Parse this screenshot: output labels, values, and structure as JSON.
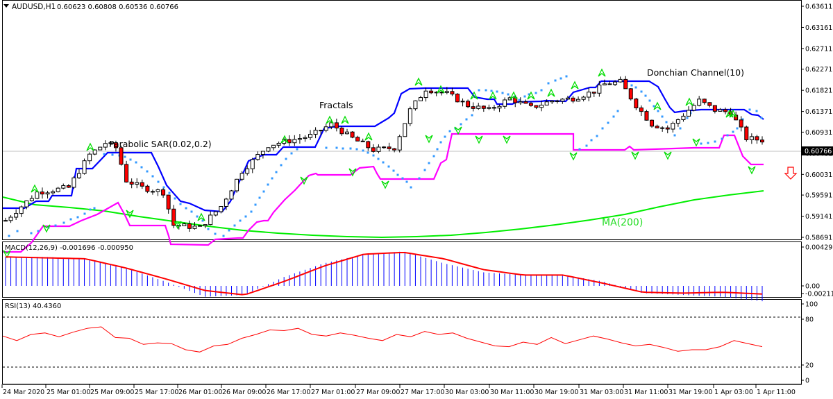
{
  "header": {
    "symbol_label": "AUDUSD,H1",
    "ohlc": "0.60623 0.60808 0.60536 0.60766",
    "dropdown_icon": "triangle-down-icon"
  },
  "annotations": {
    "parabolic_sar": "Parabolic SAR(0.02,0.2)",
    "fractals": "Fractals",
    "donchian": "Donchian Channel(10)",
    "ma": "MA(200)",
    "signal_icon": "arrow-down-outline-icon"
  },
  "macd_panel": {
    "label": "MACD(12,26,9) -0.001696 -0.000950"
  },
  "rsi_panel": {
    "label": "RSI(13) 40.4360"
  },
  "colors": {
    "bull_candle": "#ffffff",
    "bear_candle": "#ff0000",
    "donchian_upper": "#0000ff",
    "donchian_lower": "#ff00ff",
    "ma200": "#00ee00",
    "sar": "#3399ff",
    "fractals": "#00dd00",
    "macd_hist": "#0000ff",
    "macd_signal": "#ff0000",
    "rsi": "#ff0000",
    "arrow_signal": "#ff0000"
  },
  "chart_data": [
    {
      "type": "candlestick",
      "title": "AUDUSD,H1",
      "subtitle": "0.60623 0.60808 0.60536 0.60766",
      "ylim": [
        0.58691,
        0.63611
      ],
      "y_ticks": [
        "0.63611",
        "0.63161",
        "0.62711",
        "0.62271",
        "0.61821",
        "0.61371",
        "0.60931",
        "0.60481",
        "0.60031",
        "0.59591",
        "0.59141",
        "0.58691"
      ],
      "current_price": "0.60766",
      "x_ticks": [
        "24 Mar 2020",
        "25 Mar 01:00",
        "25 Mar 09:00",
        "25 Mar 17:00",
        "26 Mar 01:00",
        "26 Mar 09:00",
        "26 Mar 17:00",
        "27 Mar 01:00",
        "27 Mar 09:00",
        "27 Mar 17:00",
        "30 Mar 03:00",
        "30 Mar 11:00",
        "30 Mar 19:00",
        "31 Mar 03:00",
        "31 Mar 11:00",
        "31 Mar 19:00",
        "1 Apr 03:00",
        "1 Apr 11:00"
      ],
      "series": [
        {
          "name": "Donchian Channel(10) upper",
          "approx_values": [
            0.597,
            0.5985,
            0.6075,
            0.6075,
            0.6035,
            0.5985,
            0.596,
            0.602,
            0.608,
            0.6105,
            0.612,
            0.612,
            0.619,
            0.619,
            0.616,
            0.6175,
            0.6175,
            0.6205,
            0.6215,
            0.6215,
            0.617,
            0.617,
            0.614
          ]
        },
        {
          "name": "Donchian Channel(10) lower",
          "approx_values": [
            0.587,
            0.591,
            0.5925,
            0.596,
            0.592,
            0.588,
            0.588,
            0.5905,
            0.599,
            0.605,
            0.603,
            0.6025,
            0.6105,
            0.6105,
            0.6085,
            0.6085,
            0.609,
            0.6095,
            0.6095,
            0.6115,
            0.6055
          ]
        },
        {
          "name": "MA(200)",
          "approx_values": [
            0.5975,
            0.5955,
            0.5935,
            0.5918,
            0.5912,
            0.591,
            0.5912,
            0.593,
            0.5955,
            0.5985,
            0.6005
          ]
        },
        {
          "name": "Parabolic SAR(0.02,0.2)",
          "type": "dots"
        },
        {
          "name": "Fractals",
          "type": "markers"
        }
      ]
    },
    {
      "type": "bar+line",
      "title": "MACD(12,26,9)",
      "values_label": "-0.001696 -0.000950",
      "ylim": [
        -0.002115,
        0.004291
      ],
      "y_ticks": [
        "0.004291",
        "0.00",
        "-0.002115"
      ],
      "series": [
        {
          "name": "MACD histogram",
          "approx_values": [
            0.0032,
            0.0032,
            0.003,
            0.002,
            0.0005,
            -0.0012,
            -0.001,
            0.001,
            0.0025,
            0.0035,
            0.0038,
            0.0025,
            0.0015,
            0.0012,
            0.0012,
            0.0005,
            -0.0008,
            -0.001,
            -0.0012,
            -0.0017
          ]
        },
        {
          "name": "Signal",
          "approx_values": [
            0.0032,
            0.0031,
            0.003,
            0.002,
            0.0008,
            -0.0005,
            -0.001,
            0.0005,
            0.0022,
            0.0035,
            0.0037,
            0.003,
            0.0018,
            0.0012,
            0.0012,
            0.0003,
            -0.0007,
            -0.0008,
            -0.0007,
            -0.0009
          ]
        }
      ]
    },
    {
      "type": "line",
      "title": "RSI(13)",
      "value_label": "40.4360",
      "ylim": [
        0,
        100
      ],
      "y_ticks": [
        "100",
        "80",
        "20",
        "0"
      ],
      "levels": [
        80,
        20
      ],
      "series": [
        {
          "name": "RSI(13)",
          "approx_values": [
            58,
            52,
            60,
            62,
            57,
            63,
            68,
            70,
            56,
            55,
            47,
            49,
            48,
            40,
            37,
            45,
            47,
            55,
            60,
            66,
            65,
            68,
            60,
            58,
            62,
            59,
            55,
            52,
            60,
            57,
            64,
            60,
            62,
            55,
            50,
            45,
            44,
            50,
            47,
            56,
            48,
            53,
            58,
            54,
            49,
            45,
            47,
            43,
            38,
            40,
            40,
            44,
            52,
            48,
            44
          ]
        }
      ]
    }
  ]
}
